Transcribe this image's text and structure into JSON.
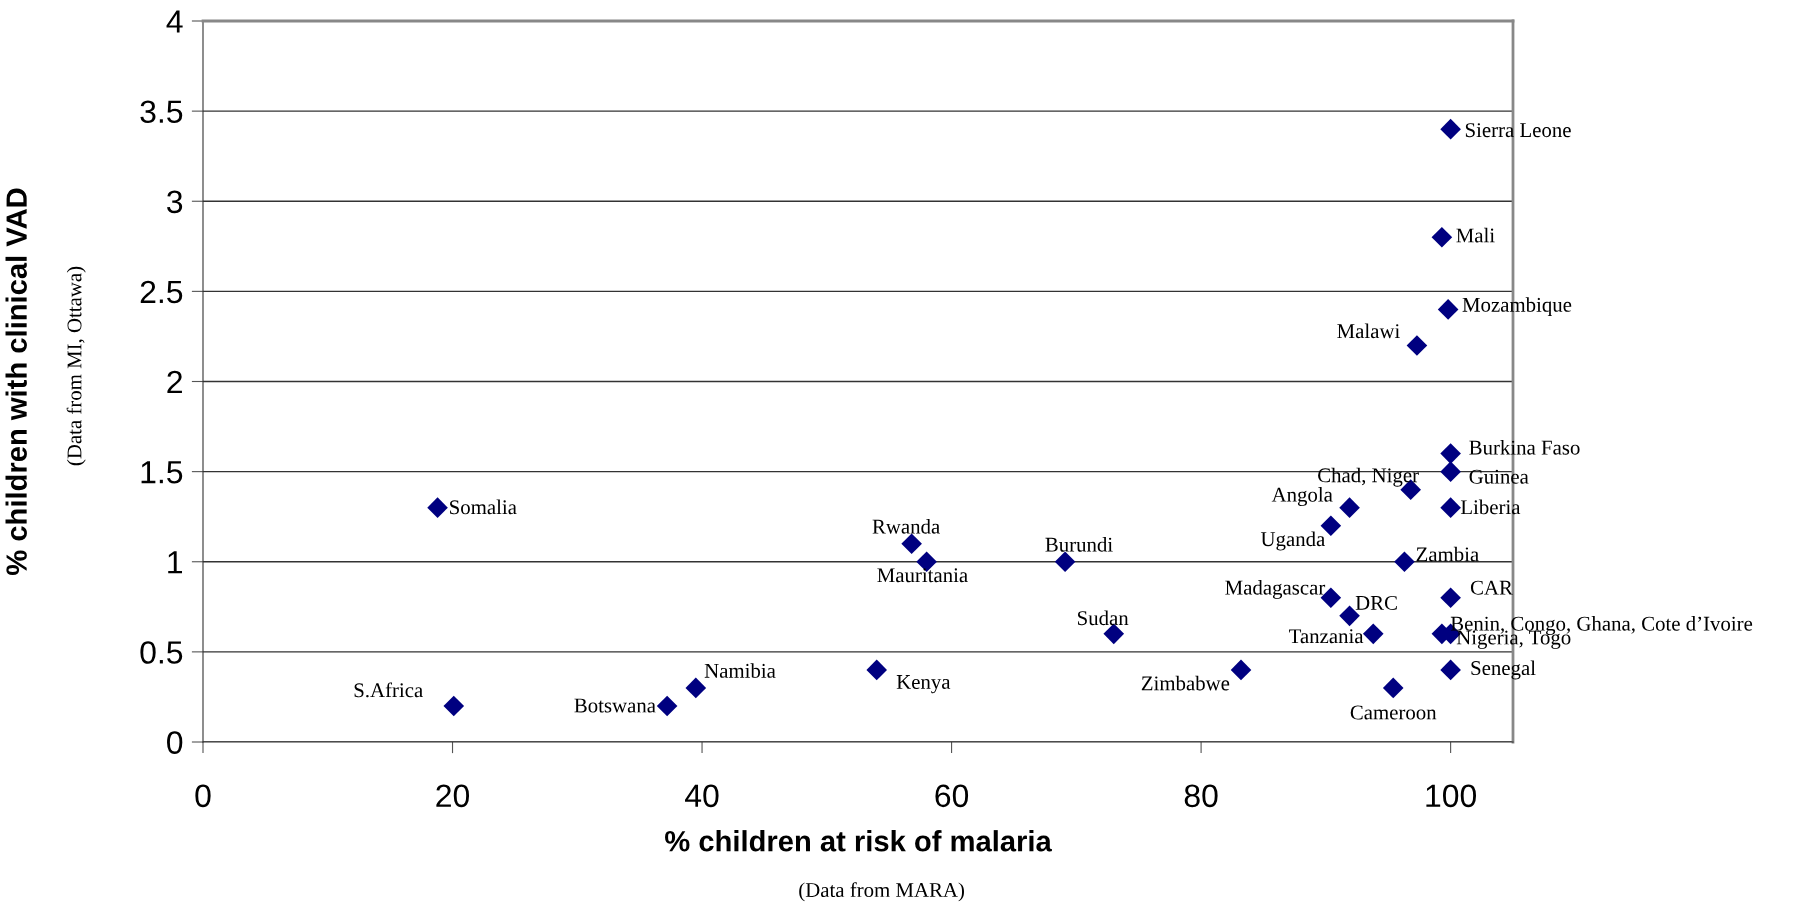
{
  "chart_data": {
    "type": "scatter",
    "xlabel": "% children at risk of malaria",
    "ylabel": "% children with clinical VAD",
    "xlim": [
      0,
      105
    ],
    "xticks": [
      0,
      20,
      40,
      60,
      80,
      100
    ],
    "ylim": [
      0,
      4
    ],
    "yticks": [
      0,
      0.5,
      1,
      1.5,
      2,
      2.5,
      3,
      3.5,
      4
    ],
    "grid": "y",
    "marker": "diamond",
    "series": [
      {
        "color": "#000080",
        "x": [
          100,
          99.3,
          99.8,
          97.3,
          100,
          100,
          96.8,
          100,
          91.9,
          90.4,
          96.3,
          100,
          90.4,
          91.9,
          93.8,
          99.3,
          100,
          100,
          83.2,
          95.4,
          54,
          73,
          69.1,
          58,
          56.8,
          18.8,
          20.1,
          37.2,
          39.5
        ],
        "values": [
          3.4,
          2.8,
          2.4,
          2.2,
          1.6,
          1.5,
          1.4,
          1.3,
          1.3,
          1.2,
          1.0,
          0.8,
          0.8,
          0.7,
          0.6,
          0.6,
          0.6,
          0.4,
          0.4,
          0.3,
          0.4,
          0.6,
          1.0,
          1.0,
          1.1,
          1.3,
          0.2,
          0.2,
          0.3
        ]
      }
    ],
    "annotations": [
      {
        "text": "Sierra Leone",
        "x": 100,
        "y": 3.4
      },
      {
        "text": "Mali",
        "x": 99.3,
        "y": 2.8
      },
      {
        "text": "Mozambique",
        "x": 99.8,
        "y": 2.4
      },
      {
        "text": "Malawi",
        "x": 97.3,
        "y": 2.2
      },
      {
        "text": "Burkina Faso",
        "x": 100,
        "y": 1.6
      },
      {
        "text": "Guinea",
        "x": 100,
        "y": 1.5
      },
      {
        "text": "Chad, Niger",
        "x": 96.8,
        "y": 1.4
      },
      {
        "text": "Liberia",
        "x": 100,
        "y": 1.3
      },
      {
        "text": "Angola",
        "x": 91.9,
        "y": 1.3
      },
      {
        "text": "Uganda",
        "x": 90.4,
        "y": 1.2
      },
      {
        "text": "Zambia",
        "x": 96.3,
        "y": 1.0
      },
      {
        "text": "CAR",
        "x": 100,
        "y": 0.8
      },
      {
        "text": "Madagascar",
        "x": 90.4,
        "y": 0.8
      },
      {
        "text": "DRC",
        "x": 91.9,
        "y": 0.7
      },
      {
        "text": "Tanzania",
        "x": 93.8,
        "y": 0.6
      },
      {
        "text": "Benin, Congo, Ghana, Cote d’Ivoire",
        "x": 99.3,
        "y": 0.6
      },
      {
        "text": "Nigeria, Togo",
        "x": 100,
        "y": 0.6
      },
      {
        "text": "Senegal",
        "x": 100,
        "y": 0.4
      },
      {
        "text": "Zimbabwe",
        "x": 83.2,
        "y": 0.4
      },
      {
        "text": "Cameroon",
        "x": 95.4,
        "y": 0.3
      },
      {
        "text": "Kenya",
        "x": 54,
        "y": 0.4
      },
      {
        "text": "Sudan",
        "x": 73,
        "y": 0.6
      },
      {
        "text": "Burundi",
        "x": 69.1,
        "y": 1.0
      },
      {
        "text": "Mauritania",
        "x": 58,
        "y": 1.0
      },
      {
        "text": "Rwanda",
        "x": 56.8,
        "y": 1.1
      },
      {
        "text": "Somalia",
        "x": 18.8,
        "y": 1.3
      },
      {
        "text": "S.Africa",
        "x": 20.1,
        "y": 0.2
      },
      {
        "text": "Botswana",
        "x": 37.2,
        "y": 0.2
      },
      {
        "text": "Namibia",
        "x": 39.5,
        "y": 0.3
      },
      "(Data from MARA)",
      "(Data from MI, Ottawa)"
    ]
  }
}
